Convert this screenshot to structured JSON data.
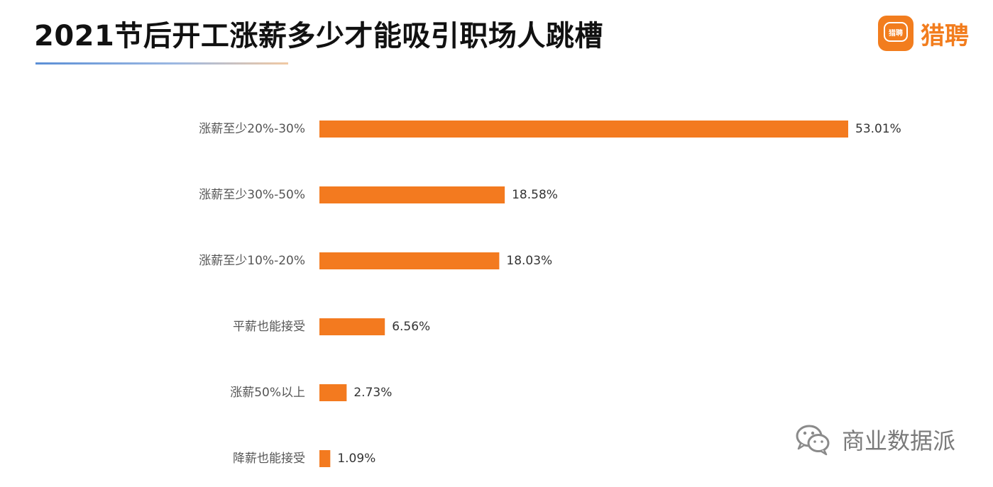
{
  "header": {
    "title": "2021节后开工涨薪多少才能吸引职场人跳槽",
    "logo_text": "猎聘",
    "logo_icon_text": "猎聘",
    "logo_icon": "liepin-logo-icon"
  },
  "watermark": {
    "text": "商业数据派",
    "icon": "wechat-icon"
  },
  "colors": {
    "bar": "#f37a1f",
    "label": "#555555",
    "value": "#333333",
    "brand": "#f27d1e"
  },
  "chart_data": {
    "type": "bar",
    "orientation": "horizontal",
    "title": "2021节后开工涨薪多少才能吸引职场人跳槽",
    "categories": [
      "涨薪至少20%-30%",
      "涨薪至少30%-50%",
      "涨薪至少10%-20%",
      "平薪也能接受",
      "涨薪50%以上",
      "降薪也能接受"
    ],
    "values": [
      53.01,
      18.58,
      18.03,
      6.56,
      2.73,
      1.09
    ],
    "value_labels": [
      "53.01%",
      "18.58%",
      "18.03%",
      "6.56%",
      "2.73%",
      "1.09%"
    ],
    "xlim": [
      0,
      53.01
    ],
    "grid": false,
    "legend": "none"
  }
}
